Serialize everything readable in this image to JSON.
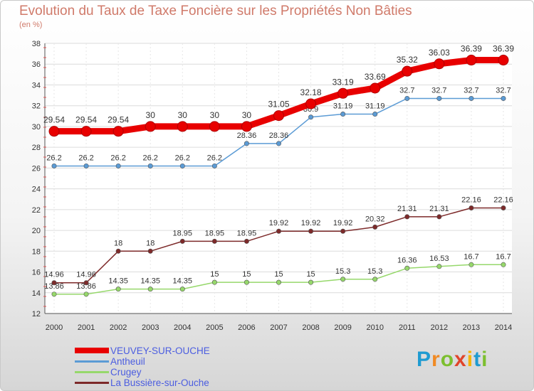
{
  "title": "Evolution du Taux de Taxe Foncière sur les Propriétés Non Bâties",
  "unit": "(en %)",
  "brand": {
    "letters": [
      "P",
      "r",
      "o",
      "x",
      "i",
      "t",
      "i"
    ],
    "colors": [
      "#1f9bd1",
      "#f08a24",
      "#7cbf2f",
      "#e0452b",
      "#f5b400",
      "#1f9bd1",
      "#7cbf2f"
    ]
  },
  "chart_data": {
    "type": "line",
    "x": [
      "2000",
      "2001",
      "2002",
      "2003",
      "2004",
      "2005",
      "2006",
      "2007",
      "2008",
      "2009",
      "2010",
      "2011",
      "2012",
      "2013",
      "2014"
    ],
    "ylim": [
      12,
      38
    ],
    "yticks": [
      "12",
      "14",
      "16",
      "18",
      "20",
      "22",
      "24",
      "26",
      "28",
      "30",
      "32",
      "34",
      "36",
      "38"
    ],
    "grid": true,
    "series": [
      {
        "name": "VEUVEY-SUR-OUCHE",
        "color": "#e80000",
        "values": [
          29.54,
          29.54,
          29.54,
          30,
          30,
          30,
          30,
          31.05,
          32.18,
          33.19,
          33.69,
          35.32,
          36.03,
          36.39,
          36.39
        ],
        "labels": [
          "29.54",
          "29.54",
          "29.54",
          "30",
          "30",
          "30",
          "30",
          "31.05",
          "32.18",
          "33.19",
          "33.69",
          "35.32",
          "36.03",
          "36.39",
          "36.39"
        ]
      },
      {
        "name": "Antheuil",
        "color": "#5b9bd5",
        "values": [
          26.2,
          26.2,
          26.2,
          26.2,
          26.2,
          26.2,
          28.36,
          28.36,
          30.9,
          31.19,
          31.19,
          32.7,
          32.7,
          32.7,
          32.7
        ],
        "labels": [
          "26.2",
          "26.2",
          "26.2",
          "26.2",
          "26.2",
          "26.2",
          "28.36",
          "28.36",
          "30.9",
          "31.19",
          "31.19",
          "32.7",
          "32.7",
          "32.7",
          "32.7"
        ]
      },
      {
        "name": "Crugey",
        "color": "#96d86b",
        "values": [
          13.86,
          13.86,
          14.35,
          14.35,
          14.35,
          15,
          15,
          15,
          15,
          15.3,
          15.3,
          16.36,
          16.53,
          16.7,
          16.7
        ],
        "labels": [
          "13.86",
          "13.86",
          "14.35",
          "14.35",
          "14.35",
          "15",
          "15",
          "15",
          "15",
          "15.3",
          "15.3",
          "16.36",
          "16.53",
          "16.7",
          "16.7"
        ]
      },
      {
        "name": "La Bussière-sur-Ouche",
        "color": "#7d2a2a",
        "values": [
          14.96,
          14.96,
          18,
          18,
          18.95,
          18.95,
          18.95,
          19.92,
          19.92,
          19.92,
          20.32,
          21.31,
          21.31,
          22.16,
          22.16
        ],
        "labels": [
          "14.96",
          "14.96",
          "18",
          "18",
          "18.95",
          "18.95",
          "18.95",
          "19.92",
          "19.92",
          "19.92",
          "20.32",
          "21.31",
          "21.31",
          "22.16",
          "22.16"
        ]
      }
    ]
  }
}
